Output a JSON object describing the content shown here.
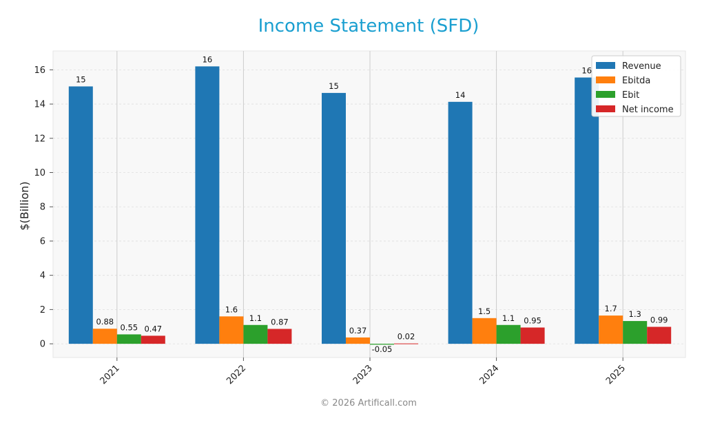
{
  "chart_data": {
    "type": "bar",
    "title": "Income Statement (SFD)",
    "ylabel": "$(Billion)",
    "xlabel": "",
    "categories": [
      "2021",
      "2022",
      "2023",
      "2024",
      "2025"
    ],
    "ylim": [
      -0.8,
      17.1
    ],
    "yticks": [
      0,
      2,
      4,
      6,
      8,
      10,
      12,
      14,
      16
    ],
    "grid": true,
    "legend_position": "top-right",
    "series": [
      {
        "name": "Revenue",
        "color": "#1f77b4",
        "values": [
          15.03,
          16.2,
          14.65,
          14.13,
          15.55
        ],
        "labels": [
          "15",
          "16",
          "15",
          "14",
          "16"
        ]
      },
      {
        "name": "Ebitda",
        "color": "#ff7f0e",
        "values": [
          0.88,
          1.6,
          0.37,
          1.5,
          1.65
        ],
        "labels": [
          "0.88",
          "1.6",
          "0.37",
          "1.5",
          "1.7"
        ]
      },
      {
        "name": "Ebit",
        "color": "#2ca02c",
        "values": [
          0.55,
          1.1,
          -0.05,
          1.1,
          1.33
        ],
        "labels": [
          "0.55",
          "1.1",
          "-0.05",
          "1.1",
          "1.3"
        ]
      },
      {
        "name": "Net income",
        "color": "#d62728",
        "values": [
          0.47,
          0.87,
          0.02,
          0.95,
          0.99
        ],
        "labels": [
          "0.47",
          "0.87",
          "0.02",
          "0.95",
          "0.99"
        ]
      }
    ]
  },
  "footer": "© 2026 Artificall.com"
}
